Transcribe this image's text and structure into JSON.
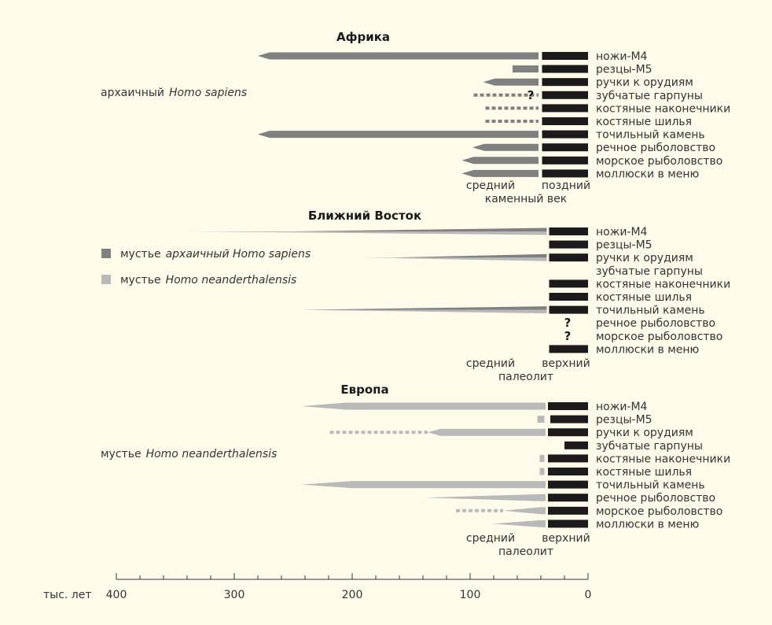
{
  "colors": {
    "archaic": "#808080",
    "neander": "#b9b9b9",
    "modern": "#1c1a1a",
    "background": "#fffbea"
  },
  "axis": {
    "unit_label": "тыс. лет",
    "ticks": [
      400,
      300,
      200,
      100,
      0
    ],
    "range_ka": [
      400,
      0
    ],
    "minor_step": 20
  },
  "legend": [
    {
      "series": "archaic",
      "prefix": "мустье",
      "species": "архаичный Homo sapiens"
    },
    {
      "series": "neander",
      "prefix": "мустье",
      "species": "Homo neanderthalensis"
    }
  ],
  "panels": [
    {
      "title": "Африка",
      "side_label": {
        "prefix": "архаичный",
        "species": "Homo sapiens"
      },
      "era": {
        "left": "средний",
        "right": "поздний",
        "bottom": "каменный век"
      },
      "modern_from": 39,
      "rows": [
        {
          "label": "ножи-M4",
          "modern": true,
          "segs": [
            {
              "type": "taper",
              "series": "archaic",
              "from": 280,
              "full": 270,
              "to": 42
            }
          ]
        },
        {
          "label": "резцы-M5",
          "modern": true,
          "segs": [
            {
              "type": "solid",
              "series": "archaic",
              "from": 64,
              "to": 42
            }
          ]
        },
        {
          "label": "ручки к орудиям",
          "modern": true,
          "segs": [
            {
              "type": "taper",
              "series": "archaic",
              "from": 89,
              "full": 79,
              "to": 42
            }
          ]
        },
        {
          "label": "зубчатые гарпуны",
          "modern": true,
          "question": "?",
          "segs": [
            {
              "type": "dashed",
              "series": "archaic",
              "from": 97,
              "to": 42
            }
          ]
        },
        {
          "label": "костяные наконечники",
          "modern": true,
          "segs": [
            {
              "type": "dashed",
              "series": "archaic",
              "from": 87,
              "to": 42
            }
          ]
        },
        {
          "label": "костяные шилья",
          "modern": true,
          "segs": [
            {
              "type": "dashed",
              "series": "archaic",
              "from": 87,
              "to": 42
            }
          ]
        },
        {
          "label": "точильный камень",
          "modern": true,
          "segs": [
            {
              "type": "taper",
              "series": "archaic",
              "from": 280,
              "full": 270,
              "to": 42
            }
          ]
        },
        {
          "label": "речное рыболовство",
          "modern": true,
          "segs": [
            {
              "type": "taper",
              "series": "archaic",
              "from": 98,
              "full": 88,
              "to": 42
            }
          ]
        },
        {
          "label": "морское рыболовство",
          "modern": true,
          "segs": [
            {
              "type": "taper",
              "series": "archaic",
              "from": 107,
              "full": 97,
              "to": 42
            }
          ]
        },
        {
          "label": "моллюски в меню",
          "modern": true,
          "segs": [
            {
              "type": "taper",
              "series": "archaic",
              "from": 107,
              "full": 97,
              "to": 42
            }
          ]
        }
      ]
    },
    {
      "title": "Ближний Восток",
      "era": {
        "left": "средний",
        "right": "верхний",
        "bottom": "палеолит"
      },
      "modern_from": 33,
      "rows": [
        {
          "label": "ножи-M4",
          "modern": true,
          "segs": [
            {
              "type": "spear",
              "series": "neander",
              "from": 340,
              "to": 35,
              "band": "lower"
            },
            {
              "type": "spear",
              "series": "archaic",
              "from": 252,
              "to": 35,
              "band": "upper"
            }
          ]
        },
        {
          "label": "резцы-M5",
          "modern": true,
          "segs": []
        },
        {
          "label": "ручки к орудиям",
          "modern": true,
          "segs": [
            {
              "type": "spear",
              "series": "neander",
              "from": 192,
              "to": 35,
              "band": "lower"
            },
            {
              "type": "spear",
              "series": "archaic",
              "from": 165,
              "to": 35,
              "band": "upper"
            }
          ]
        },
        {
          "label": "зубчатые гарпуны",
          "modern": false,
          "segs": []
        },
        {
          "label": "костяные наконечники",
          "modern": true,
          "segs": []
        },
        {
          "label": "костяные шилья",
          "modern": true,
          "segs": []
        },
        {
          "label": "точильный камень",
          "modern": true,
          "segs": [
            {
              "type": "spear",
              "series": "neander",
              "from": 243,
              "to": 35,
              "band": "lower"
            },
            {
              "type": "spear",
              "series": "archaic",
              "from": 243,
              "to": 35,
              "band": "upper"
            }
          ]
        },
        {
          "label": "речное рыболовство",
          "modern": false,
          "question": "?",
          "segs": []
        },
        {
          "label": "морское рыболовство",
          "modern": false,
          "question": "?",
          "segs": []
        },
        {
          "label": "моллюски в меню",
          "modern": true,
          "segs": []
        }
      ]
    },
    {
      "title": "Европа",
      "side_label": {
        "prefix": "мустье",
        "species": "Homo neanderthalensis"
      },
      "era": {
        "left": "средний",
        "right": "верхний",
        "bottom": "палеолит"
      },
      "modern_from": 34,
      "rows": [
        {
          "label": "ножи-M4",
          "modern": true,
          "segs": [
            {
              "type": "taper",
              "series": "neander",
              "from": 243,
              "full": 205,
              "to": 36
            }
          ]
        },
        {
          "label": "резцы-M5",
          "modern": true,
          "modern_from": 32,
          "segs": [
            {
              "type": "solid",
              "series": "neander",
              "from": 43,
              "to": 37
            }
          ]
        },
        {
          "label": "ручки к орудиям",
          "modern": true,
          "segs": [
            {
              "type": "dashed",
              "series": "neander",
              "from": 219,
              "to": 136
            },
            {
              "type": "taper",
              "series": "neander",
              "from": 136,
              "full": 125,
              "to": 36
            }
          ]
        },
        {
          "label": "зубчатые гарпуны",
          "modern": true,
          "modern_from": 20,
          "segs": []
        },
        {
          "label": "костяные наконечники",
          "modern": true,
          "segs": [
            {
              "type": "solid",
              "series": "neander",
              "from": 41,
              "to": 37
            }
          ]
        },
        {
          "label": "костяные шилья",
          "modern": true,
          "segs": [
            {
              "type": "solid",
              "series": "neander",
              "from": 41,
              "to": 37
            }
          ]
        },
        {
          "label": "точильный камень",
          "modern": true,
          "segs": [
            {
              "type": "taper",
              "series": "neander",
              "from": 243,
              "full": 200,
              "to": 36
            }
          ]
        },
        {
          "label": "речное рыболовство",
          "modern": true,
          "segs": [
            {
              "type": "taper",
              "series": "neander",
              "from": 138,
              "full": 40,
              "to": 36
            }
          ]
        },
        {
          "label": "морское рыболовство",
          "modern": true,
          "segs": [
            {
              "type": "dashed",
              "series": "neander",
              "from": 112,
              "to": 72
            },
            {
              "type": "taper",
              "series": "neander",
              "from": 72,
              "full": 40,
              "to": 36
            }
          ]
        },
        {
          "label": "моллюски в меню",
          "modern": true,
          "segs": [
            {
              "type": "taper",
              "series": "neander",
              "from": 81,
              "full": 40,
              "to": 36
            }
          ]
        }
      ]
    }
  ]
}
